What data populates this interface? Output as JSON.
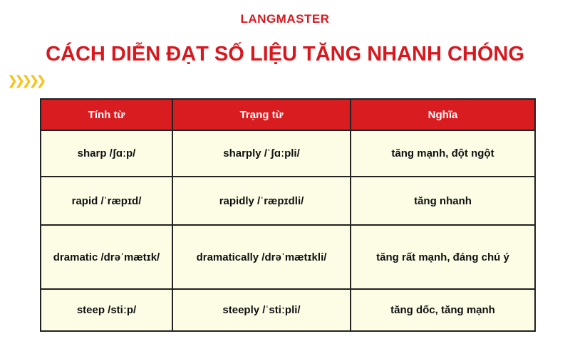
{
  "brand": "LANGMASTER",
  "title": "CÁCH DIỄN ĐẠT SỐ LIỆU TĂNG NHANH CHÓNG",
  "colors": {
    "accent": "#d91c20",
    "cell_bg": "#fdfde6",
    "arrows": "#f7c21a"
  },
  "table": {
    "headers": [
      "Tính từ",
      "Trạng từ",
      "Nghĩa"
    ],
    "rows": [
      [
        "sharp /ʃɑːp/",
        "sharply /ˈʃɑːpli/",
        "tăng mạnh, đột ngột"
      ],
      [
        "rapid /ˈræpɪd/",
        "rapidly /ˈræpɪdli/",
        "tăng nhanh"
      ],
      [
        "dramatic /drəˈmætɪk/",
        "dramatically /drəˈmætɪkli/",
        "tăng rất mạnh, đáng chú ý"
      ],
      [
        "steep /stiːp/",
        "steeply /ˈstiːpli/",
        "tăng dốc, tăng mạnh"
      ]
    ]
  }
}
